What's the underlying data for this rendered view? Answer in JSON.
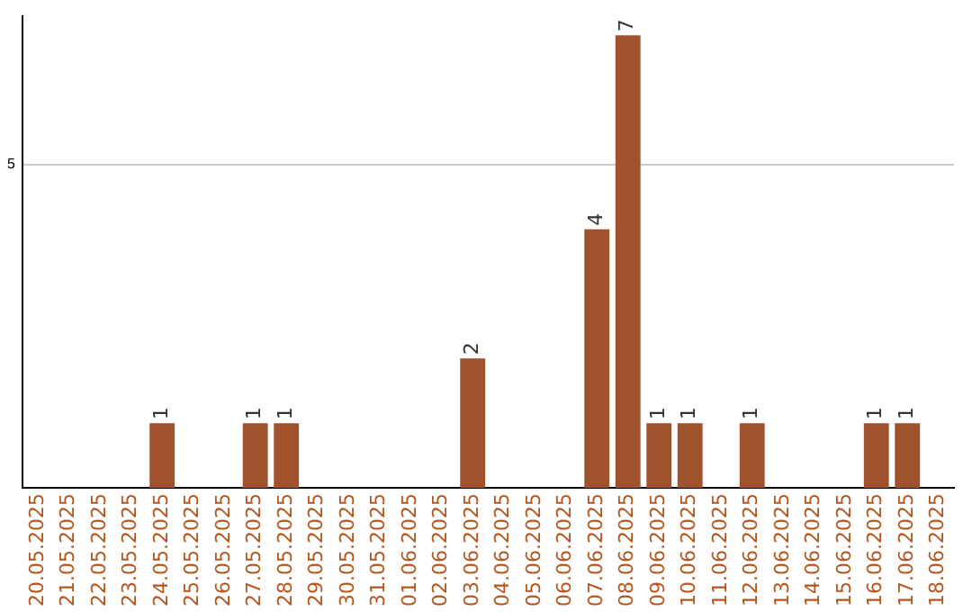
{
  "chart_data": {
    "type": "bar",
    "categories": [
      "20.05.2025",
      "21.05.2025",
      "22.05.2025",
      "23.05.2025",
      "24.05.2025",
      "25.05.2025",
      "26.05.2025",
      "27.05.2025",
      "28.05.2025",
      "29.05.2025",
      "30.05.2025",
      "31.05.2025",
      "01.06.2025",
      "02.06.2025",
      "03.06.2025",
      "04.06.2025",
      "05.06.2025",
      "06.06.2025",
      "07.06.2025",
      "08.06.2025",
      "09.06.2025",
      "10.06.2025",
      "11.06.2025",
      "12.06.2025",
      "13.06.2025",
      "14.06.2025",
      "15.06.2025",
      "16.06.2025",
      "17.06.2025",
      "18.06.2025"
    ],
    "values": [
      0,
      0,
      0,
      0,
      1,
      0,
      0,
      1,
      1,
      0,
      0,
      0,
      0,
      0,
      2,
      0,
      0,
      0,
      4,
      7,
      1,
      1,
      0,
      1,
      0,
      0,
      0,
      1,
      1,
      0
    ],
    "value_labels": [
      null,
      null,
      null,
      null,
      "1",
      null,
      null,
      "1",
      "1",
      null,
      null,
      null,
      null,
      null,
      "2",
      null,
      null,
      null,
      "4",
      "7",
      "1",
      "1",
      null,
      "1",
      null,
      null,
      null,
      "1",
      "1",
      null
    ],
    "color": "#a0522d",
    "ylim": [
      0,
      7.3
    ],
    "yticks": [
      5
    ],
    "grid": "y",
    "legend": false
  }
}
